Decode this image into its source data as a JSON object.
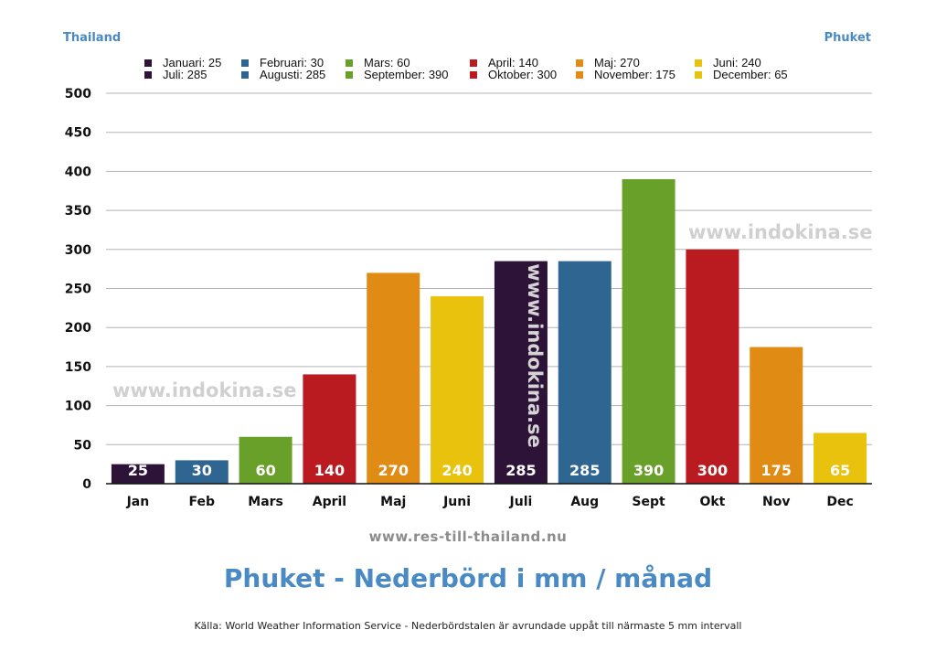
{
  "header": {
    "left": "Thailand",
    "right": "Phuket"
  },
  "legend": [
    {
      "label": "Januari: 25",
      "color": "#2d1338"
    },
    {
      "label": "Februari: 30",
      "color": "#2f6591"
    },
    {
      "label": "Mars: 60",
      "color": "#69a02a"
    },
    {
      "label": "April: 140",
      "color": "#b91b20"
    },
    {
      "label": "Maj: 270",
      "color": "#e08b14"
    },
    {
      "label": "Juni: 240",
      "color": "#e8c20c"
    },
    {
      "label": "Juli: 285",
      "color": "#2d1338"
    },
    {
      "label": "Augusti: 285",
      "color": "#2f6591"
    },
    {
      "label": "September: 390",
      "color": "#69a02a"
    },
    {
      "label": "Oktober: 300",
      "color": "#b91b20"
    },
    {
      "label": "November: 175",
      "color": "#e08b14"
    },
    {
      "label": "December: 65",
      "color": "#e8c20c"
    }
  ],
  "chart_data": {
    "type": "bar",
    "categories": [
      "Jan",
      "Feb",
      "Mars",
      "April",
      "Maj",
      "Juni",
      "Juli",
      "Aug",
      "Sept",
      "Okt",
      "Nov",
      "Dec"
    ],
    "values": [
      25,
      30,
      60,
      140,
      270,
      240,
      285,
      285,
      390,
      300,
      175,
      65
    ],
    "value_labels": [
      "25",
      "30",
      "60",
      "140",
      "270",
      "240",
      "285",
      "285",
      "390",
      "300",
      "175",
      "65"
    ],
    "colors": [
      "#2d1338",
      "#2f6591",
      "#69a02a",
      "#b91b20",
      "#e08b14",
      "#e8c20c",
      "#2d1338",
      "#2f6591",
      "#69a02a",
      "#b91b20",
      "#e08b14",
      "#e8c20c"
    ],
    "ylim": [
      0,
      500
    ],
    "yticks": [
      0,
      50,
      100,
      150,
      200,
      250,
      300,
      350,
      400,
      450,
      500
    ],
    "grid": true,
    "legend_position": "top",
    "title": "Phuket - Nederbörd i mm / månad"
  },
  "watermarks": {
    "left": "www.indokina.se",
    "right": "www.indokina.se",
    "vertical": "www.indokina.se"
  },
  "footer": {
    "url": "www.res-till-thailand.nu",
    "source": "Källa: World Weather Information Service - Nederbördstalen är avrundade uppåt till närmaste 5 mm intervall"
  }
}
